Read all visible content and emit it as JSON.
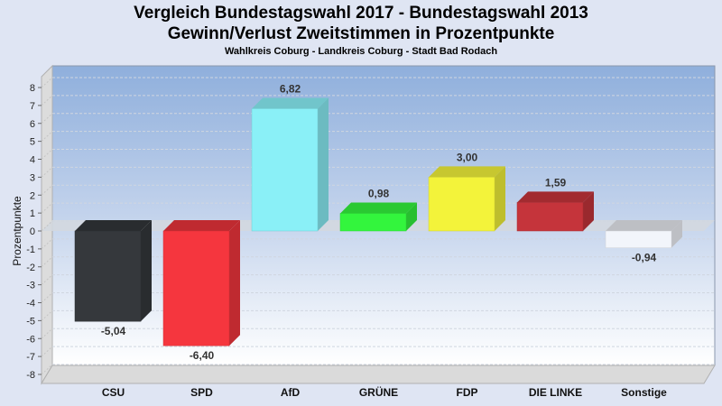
{
  "chart_data": {
    "type": "bar",
    "title": "Vergleich Bundestagswahl 2017 - Bundestagswahl 2013",
    "subtitle": "Gewinn/Verlust Zweitstimmen in Prozentpunkte",
    "subsubtitle": "Wahlkreis Coburg - Landkreis Coburg - Stadt Bad Rodach",
    "xlabel": "",
    "ylabel": "Prozentpunkte",
    "ylim": [
      -8,
      8
    ],
    "yticks": [
      8,
      7,
      6,
      5,
      4,
      3,
      2,
      1,
      0,
      -1,
      -2,
      -3,
      -4,
      -5,
      -6,
      -7,
      -8
    ],
    "grid": true,
    "categories": [
      "CSU",
      "SPD",
      "AfD",
      "GRÜNE",
      "FDP",
      "DIE LINKE",
      "Sonstige"
    ],
    "values": [
      -5.04,
      -6.4,
      6.82,
      0.98,
      3.0,
      1.59,
      -0.94
    ],
    "value_labels": [
      "-5,04",
      "-6,40",
      "6,82",
      "0,98",
      "3,00",
      "1,59",
      "-0,94"
    ],
    "colors": [
      "#35383c",
      "#f5363e",
      "#8af0f7",
      "#33f53d",
      "#f3f33a",
      "#c5343b",
      "#f2f5fb"
    ]
  }
}
